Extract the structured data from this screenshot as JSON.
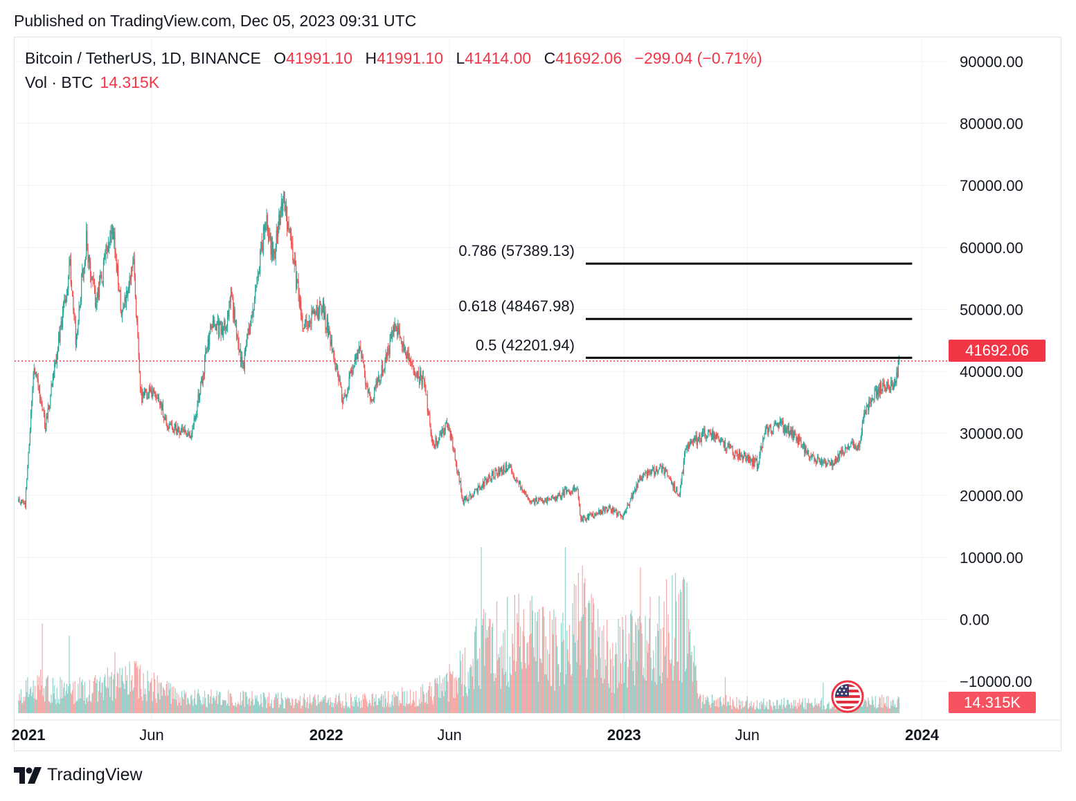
{
  "header": {
    "published": "Published on TradingView.com, Dec 05, 2023 09:31 UTC"
  },
  "legend": {
    "symbol": "Bitcoin / TetherUS, 1D, BINANCE",
    "open_label": "O",
    "open": "41991.10",
    "high_label": "H",
    "high": "41991.10",
    "low_label": "L",
    "low": "41414.00",
    "close_label": "C",
    "close": "41692.06",
    "change": "−299.04 (−0.71%)",
    "volume_label": "Vol · BTC",
    "volume": "14.315K"
  },
  "price_tag": "41692.06",
  "volume_tag": "14.315K",
  "brand": {
    "name": "TradingView"
  },
  "colors": {
    "up": "#26a69a",
    "down": "#ef5350",
    "accent": "#f23645",
    "fib": "#000000"
  },
  "chart_data": {
    "type": "candlestick",
    "y_axis_labels": [
      "90000.00",
      "80000.00",
      "70000.00",
      "60000.00",
      "50000.00",
      "40000.00",
      "30000.00",
      "20000.00",
      "10000.00",
      "0.00",
      "−10000.00"
    ],
    "y_axis_values": [
      90000,
      80000,
      70000,
      60000,
      50000,
      40000,
      30000,
      20000,
      10000,
      0,
      -10000
    ],
    "x_axis_labels": [
      {
        "label": "2021",
        "date": "2021-01-01",
        "bold": true
      },
      {
        "label": "Jun",
        "date": "2021-06-01",
        "bold": false
      },
      {
        "label": "2022",
        "date": "2022-01-01",
        "bold": true
      },
      {
        "label": "Jun",
        "date": "2022-06-01",
        "bold": false
      },
      {
        "label": "2023",
        "date": "2023-01-01",
        "bold": true
      },
      {
        "label": "Jun",
        "date": "2023-06-01",
        "bold": false
      },
      {
        "label": "2024",
        "date": "2024-01-01",
        "bold": true
      }
    ],
    "x_range": [
      "2020-12-15",
      "2024-02-01"
    ],
    "y_range": [
      -16000,
      94000
    ],
    "grid": true,
    "last_price": 41692.06,
    "fib_levels": [
      {
        "label": "0.786 (57389.13)",
        "value": 57389.13
      },
      {
        "label": "0.618 (48467.98)",
        "value": 48467.98
      },
      {
        "label": "0.5 (42201.94)",
        "value": 42201.94
      }
    ],
    "fib_range": [
      "2022-11-15",
      "2023-12-20"
    ],
    "price_path": [
      [
        "2020-12-20",
        19000
      ],
      [
        "2020-12-28",
        18500
      ],
      [
        "2021-01-08",
        41000
      ],
      [
        "2021-01-22",
        31000
      ],
      [
        "2021-02-08",
        46000
      ],
      [
        "2021-02-21",
        57000
      ],
      [
        "2021-02-28",
        45000
      ],
      [
        "2021-03-13",
        61000
      ],
      [
        "2021-03-25",
        51000
      ],
      [
        "2021-04-14",
        64000
      ],
      [
        "2021-04-25",
        49000
      ],
      [
        "2021-05-10",
        57000
      ],
      [
        "2021-05-19",
        36000
      ],
      [
        "2021-06-05",
        37000
      ],
      [
        "2021-06-22",
        31000
      ],
      [
        "2021-07-20",
        29800
      ],
      [
        "2021-08-13",
        47000
      ],
      [
        "2021-08-30",
        47000
      ],
      [
        "2021-09-06",
        52000
      ],
      [
        "2021-09-21",
        40500
      ],
      [
        "2021-10-20",
        65000
      ],
      [
        "2021-10-28",
        58000
      ],
      [
        "2021-11-10",
        68500
      ],
      [
        "2021-11-26",
        54000
      ],
      [
        "2021-12-04",
        47000
      ],
      [
        "2021-12-27",
        51000
      ],
      [
        "2022-01-22",
        35000
      ],
      [
        "2022-02-10",
        44000
      ],
      [
        "2022-02-24",
        35000
      ],
      [
        "2022-03-28",
        47500
      ],
      [
        "2022-04-10",
        42000
      ],
      [
        "2022-05-01",
        38000
      ],
      [
        "2022-05-12",
        28000
      ],
      [
        "2022-05-31",
        31500
      ],
      [
        "2022-06-18",
        19000
      ],
      [
        "2022-07-30",
        24000
      ],
      [
        "2022-08-14",
        24500
      ],
      [
        "2022-09-06",
        19000
      ],
      [
        "2022-10-01",
        19300
      ],
      [
        "2022-11-05",
        21300
      ],
      [
        "2022-11-09",
        16000
      ],
      [
        "2022-12-14",
        18000
      ],
      [
        "2022-12-30",
        16500
      ],
      [
        "2023-01-20",
        22700
      ],
      [
        "2023-02-16",
        24500
      ],
      [
        "2023-03-10",
        20000
      ],
      [
        "2023-03-17",
        27500
      ],
      [
        "2023-04-14",
        30400
      ],
      [
        "2023-05-10",
        27500
      ],
      [
        "2023-06-14",
        25000
      ],
      [
        "2023-06-23",
        30500
      ],
      [
        "2023-07-13",
        31300
      ],
      [
        "2023-08-01",
        29300
      ],
      [
        "2023-08-17",
        26000
      ],
      [
        "2023-09-11",
        25000
      ],
      [
        "2023-10-01",
        27900
      ],
      [
        "2023-10-16",
        28000
      ],
      [
        "2023-10-24",
        34000
      ],
      [
        "2023-11-09",
        37000
      ],
      [
        "2023-11-30",
        37800
      ],
      [
        "2023-12-04",
        41692
      ]
    ],
    "volume_path": [
      [
        "2020-12-20",
        2500
      ],
      [
        "2021-01-10",
        4500
      ],
      [
        "2021-03-01",
        3500
      ],
      [
        "2021-05-15",
        5500
      ],
      [
        "2021-07-01",
        2500
      ],
      [
        "2021-09-01",
        2300
      ],
      [
        "2021-12-01",
        2000
      ],
      [
        "2022-03-01",
        2000
      ],
      [
        "2022-05-01",
        3000
      ],
      [
        "2022-06-10",
        6000
      ],
      [
        "2022-07-15",
        11000
      ],
      [
        "2022-09-01",
        12000
      ],
      [
        "2022-10-15",
        10000
      ],
      [
        "2022-11-10",
        15000
      ],
      [
        "2022-12-20",
        9000
      ],
      [
        "2023-01-20",
        11000
      ],
      [
        "2023-03-01",
        14000
      ],
      [
        "2023-03-25",
        13000
      ],
      [
        "2023-04-01",
        2000
      ],
      [
        "2023-07-01",
        1500
      ],
      [
        "2023-10-01",
        1600
      ],
      [
        "2023-12-04",
        2000
      ]
    ],
    "volume_max": 27000
  }
}
